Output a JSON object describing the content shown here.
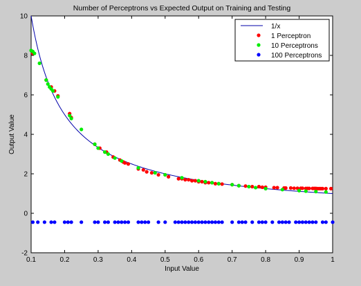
{
  "chart_data": {
    "type": "scatter",
    "title": "Number of Perceptrons vs Expected Output on Training and Testing",
    "xlabel": "Input Value",
    "ylabel": "Output Value",
    "xlim": [
      0.1,
      1
    ],
    "ylim": [
      -2,
      10
    ],
    "xticks": [
      0.1,
      0.2,
      0.3,
      0.4,
      0.5,
      0.6,
      0.7,
      0.8,
      0.9,
      1
    ],
    "yticks": [
      -2,
      0,
      2,
      4,
      6,
      8,
      10
    ],
    "xtick_labels": [
      "0.1",
      "0.2",
      "0.3",
      "0.4",
      "0.5",
      "0.6",
      "0.7",
      "0.8",
      "0.9",
      "1"
    ],
    "ytick_labels": [
      "-2",
      "0",
      "2",
      "4",
      "6",
      "8",
      "10"
    ],
    "grid": false,
    "legend_position": "top-right",
    "curve": {
      "name": "1/x",
      "type": "line",
      "function": "1/x",
      "color": "#0000aa"
    },
    "series": [
      {
        "name": "1 Perceptron",
        "type": "scatter",
        "color": "#ff0000",
        "x": [
          0.105,
          0.145,
          0.16,
          0.17,
          0.18,
          0.215,
          0.22,
          0.29,
          0.305,
          0.325,
          0.345,
          0.365,
          0.375,
          0.38,
          0.39,
          0.42,
          0.435,
          0.445,
          0.46,
          0.48,
          0.5,
          0.51,
          0.54,
          0.55,
          0.56,
          0.57,
          0.58,
          0.59,
          0.6,
          0.61,
          0.62,
          0.63,
          0.64,
          0.65,
          0.66,
          0.67,
          0.7,
          0.72,
          0.74,
          0.76,
          0.78,
          0.79,
          0.8,
          0.825,
          0.835,
          0.855,
          0.86,
          0.875,
          0.885,
          0.895,
          0.905,
          0.91,
          0.92,
          0.925,
          0.93,
          0.94,
          0.945,
          0.95,
          0.955,
          0.96,
          0.965,
          0.97,
          0.98,
          0.995
        ],
        "y": [
          8.1,
          6.75,
          6.4,
          6.2,
          5.95,
          5.05,
          4.85,
          3.5,
          3.3,
          3.1,
          2.85,
          2.7,
          2.6,
          2.55,
          2.5,
          2.25,
          2.2,
          2.1,
          2.05,
          1.95,
          1.95,
          1.85,
          1.75,
          1.75,
          1.7,
          1.7,
          1.65,
          1.65,
          1.6,
          1.6,
          1.55,
          1.55,
          1.55,
          1.5,
          1.5,
          1.48,
          1.45,
          1.4,
          1.38,
          1.35,
          1.35,
          1.32,
          1.32,
          1.3,
          1.3,
          1.28,
          1.28,
          1.28,
          1.27,
          1.27,
          1.27,
          1.27,
          1.26,
          1.26,
          1.26,
          1.26,
          1.26,
          1.26,
          1.25,
          1.25,
          1.25,
          1.25,
          1.25,
          1.25
        ]
      },
      {
        "name": "10 Perceptrons",
        "type": "scatter",
        "color": "#00ee00",
        "x": [
          0.1,
          0.105,
          0.11,
          0.125,
          0.145,
          0.15,
          0.155,
          0.16,
          0.165,
          0.18,
          0.215,
          0.22,
          0.25,
          0.29,
          0.3,
          0.32,
          0.33,
          0.35,
          0.37,
          0.42,
          0.47,
          0.5,
          0.55,
          0.6,
          0.62,
          0.64,
          0.66,
          0.7,
          0.72,
          0.75,
          0.77,
          0.8,
          0.85,
          0.9,
          0.92,
          0.95,
          0.98
        ],
        "y": [
          8.25,
          8.2,
          8.1,
          7.6,
          6.75,
          6.55,
          6.4,
          6.3,
          6.2,
          5.9,
          4.95,
          4.8,
          4.25,
          3.5,
          3.3,
          3.1,
          3.0,
          2.8,
          2.65,
          2.3,
          2.05,
          1.95,
          1.8,
          1.65,
          1.6,
          1.55,
          1.5,
          1.45,
          1.4,
          1.35,
          1.3,
          1.25,
          1.2,
          1.15,
          1.12,
          1.1,
          1.08
        ]
      },
      {
        "name": "100 Perceptrons",
        "type": "scatter",
        "color": "#0000ff",
        "x": [
          0.105,
          0.12,
          0.14,
          0.16,
          0.17,
          0.2,
          0.21,
          0.22,
          0.25,
          0.29,
          0.3,
          0.32,
          0.33,
          0.35,
          0.36,
          0.37,
          0.38,
          0.39,
          0.42,
          0.43,
          0.44,
          0.45,
          0.48,
          0.5,
          0.53,
          0.54,
          0.55,
          0.56,
          0.57,
          0.58,
          0.59,
          0.6,
          0.61,
          0.62,
          0.63,
          0.64,
          0.65,
          0.66,
          0.67,
          0.7,
          0.72,
          0.73,
          0.74,
          0.76,
          0.78,
          0.79,
          0.8,
          0.82,
          0.84,
          0.85,
          0.86,
          0.87,
          0.89,
          0.9,
          0.91,
          0.92,
          0.93,
          0.94,
          0.95,
          0.97,
          0.98,
          1.0
        ],
        "y": [
          -0.45,
          -0.45,
          -0.45,
          -0.45,
          -0.45,
          -0.45,
          -0.45,
          -0.45,
          -0.45,
          -0.45,
          -0.45,
          -0.45,
          -0.45,
          -0.45,
          -0.45,
          -0.45,
          -0.45,
          -0.45,
          -0.45,
          -0.45,
          -0.45,
          -0.45,
          -0.45,
          -0.45,
          -0.45,
          -0.45,
          -0.45,
          -0.45,
          -0.45,
          -0.45,
          -0.45,
          -0.45,
          -0.45,
          -0.45,
          -0.45,
          -0.45,
          -0.45,
          -0.45,
          -0.45,
          -0.45,
          -0.45,
          -0.45,
          -0.45,
          -0.45,
          -0.45,
          -0.45,
          -0.45,
          -0.45,
          -0.45,
          -0.45,
          -0.45,
          -0.45,
          -0.45,
          -0.45,
          -0.45,
          -0.45,
          -0.45,
          -0.45,
          -0.45,
          -0.45,
          -0.45,
          -0.45
        ]
      }
    ]
  }
}
